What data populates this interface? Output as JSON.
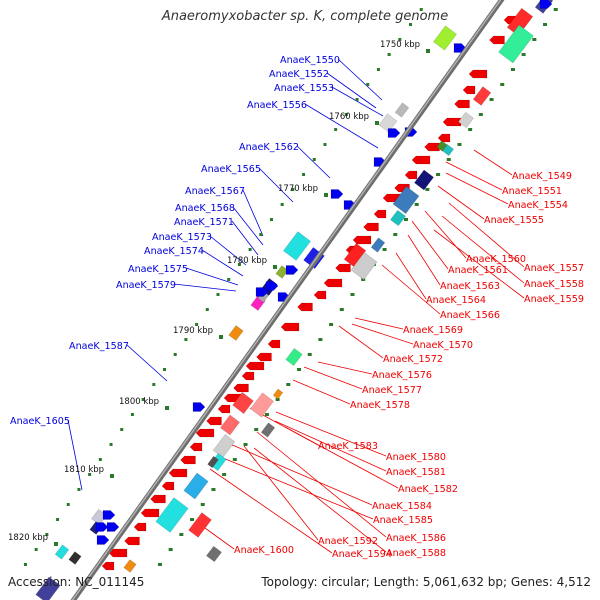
{
  "title": "Anaeromyxobacter sp. K, complete genome",
  "footer": {
    "accession_label": "Accession: ",
    "accession_value": "NC_011145",
    "topology_text": "Topology: circular; Length: 5,061,632 bp; Genes: 4,512"
  },
  "colors": {
    "backbone": "#8c8c8c",
    "tick": "#2a7a2a",
    "label_left": "#0000dd",
    "label_right": "#ee0000",
    "gene_red": "#ee0000",
    "gene_blue": "#0000ee"
  },
  "scale_ticks": [
    "1750 kbp",
    "1760 kbp",
    "1770 kbp",
    "1780 kbp",
    "1790 kbp",
    "1800 kbp",
    "1810 kbp",
    "1820 kbp"
  ],
  "left_labels": [
    "AnaeK_1550",
    "AnaeK_1552",
    "AnaeK_1553",
    "AnaeK_1556",
    "AnaeK_1562",
    "AnaeK_1565",
    "AnaeK_1567",
    "AnaeK_1568",
    "AnaeK_1571",
    "AnaeK_1573",
    "AnaeK_1574",
    "AnaeK_1575",
    "AnaeK_1579",
    "AnaeK_1587",
    "AnaeK_1605"
  ],
  "right_labels": [
    "AnaeK_1549",
    "AnaeK_1551",
    "AnaeK_1554",
    "AnaeK_1555",
    "AnaeK_1560",
    "AnaeK_1557",
    "AnaeK_1561",
    "AnaeK_1558",
    "AnaeK_1563",
    "AnaeK_1559",
    "AnaeK_1564",
    "AnaeK_1566",
    "AnaeK_1569",
    "AnaeK_1570",
    "AnaeK_1572",
    "AnaeK_1576",
    "AnaeK_1577",
    "AnaeK_1578",
    "AnaeK_1583",
    "AnaeK_1580",
    "AnaeK_1581",
    "AnaeK_1582",
    "AnaeK_1584",
    "AnaeK_1585",
    "AnaeK_1586",
    "AnaeK_1592",
    "AnaeK_1588",
    "AnaeK_1594",
    "AnaeK_1600"
  ]
}
